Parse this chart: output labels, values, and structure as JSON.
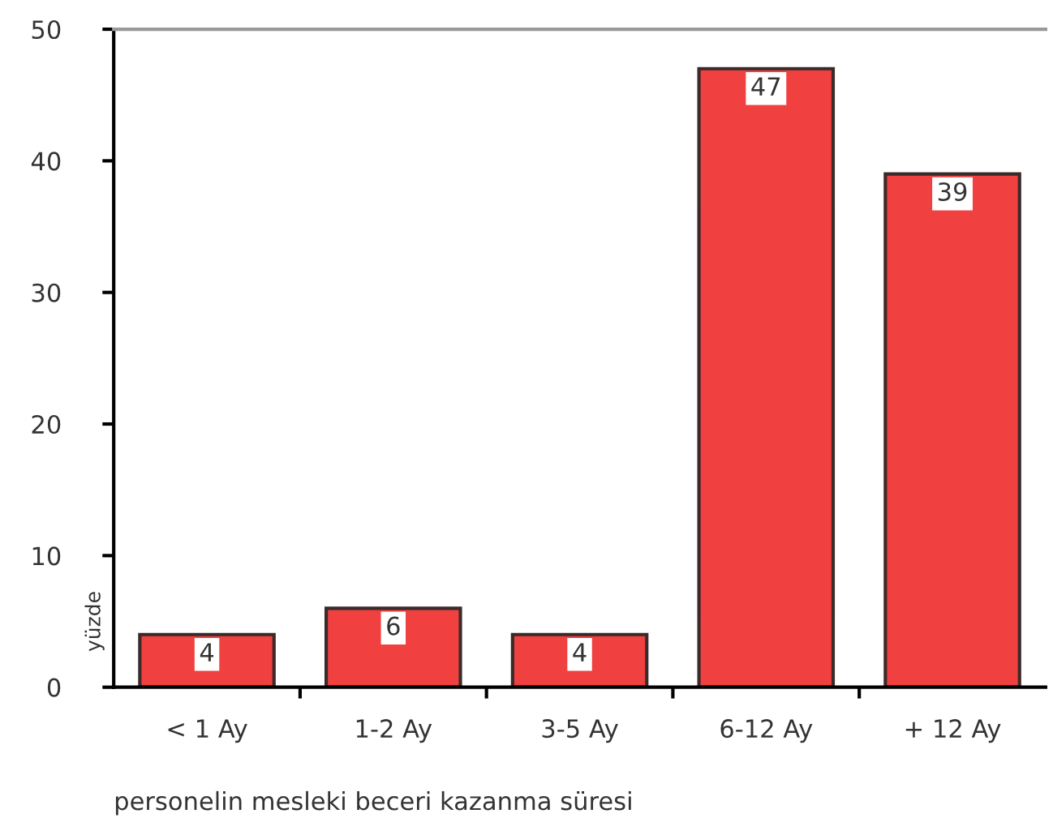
{
  "chart_data": {
    "type": "bar",
    "xlabel": "personelin mesleki beceri kazanma süresi",
    "ylabel": "yüzde",
    "categories": [
      "< 1 Ay",
      "1-2 Ay",
      "3-5 Ay",
      "6-12 Ay",
      "+ 12 Ay"
    ],
    "values": [
      4,
      6,
      4,
      47,
      39
    ],
    "color": "#f04040",
    "ylim": [
      0,
      50
    ],
    "yticks": [
      0,
      10,
      20,
      30,
      40,
      50
    ],
    "data_labels": true,
    "grid": false,
    "legend": false
  }
}
